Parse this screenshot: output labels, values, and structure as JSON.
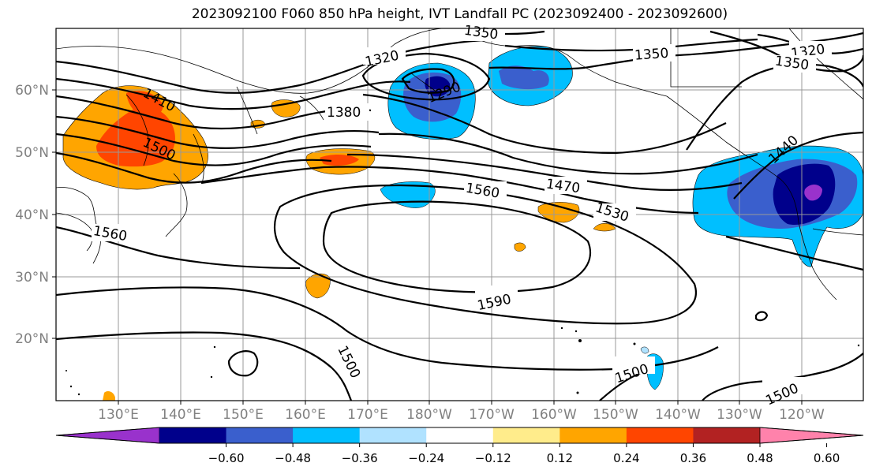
{
  "title": "2023092100 F060 850 hPa height, IVT Landfall PC (2023092400 - 2023092600)",
  "lat_labels": [
    "60°N",
    "50°N",
    "40°N",
    "30°N",
    "20°N"
  ],
  "lon_labels": [
    "130°E",
    "140°E",
    "150°E",
    "160°E",
    "170°E",
    "180°W",
    "170°W",
    "160°W",
    "150°W",
    "140°W",
    "130°W",
    "120°W"
  ],
  "contour_labels": {
    "c1350_top": "1350",
    "c1350_mid": "1350",
    "c1320_left": "1320",
    "c1320_right": "1320",
    "c1350_right": "1350",
    "c1410": "1410",
    "c1380": "1380",
    "c1290": "1290",
    "c1500_w": "1500",
    "c1440": "1440",
    "c1470": "1470",
    "c1560_mid": "1560",
    "c1530": "1530",
    "c1560_w": "1560",
    "c1590": "1590",
    "c1500_s": "1500",
    "c1500_se": "1500",
    "c1500_e": "1500"
  },
  "colorbar": {
    "tick_labels": [
      "−0.60",
      "−0.48",
      "−0.36",
      "−0.24",
      "−0.12",
      "0.12",
      "0.24",
      "0.36",
      "0.48",
      "0.60"
    ],
    "colors": [
      "#9932cc",
      "#00008b",
      "#3a5fcd",
      "#00bfff",
      "#b0e2ff",
      "#ffffff",
      "#ffec8b",
      "#ffa500",
      "#ff4500",
      "#b22222",
      "#ff82ab"
    ]
  }
}
